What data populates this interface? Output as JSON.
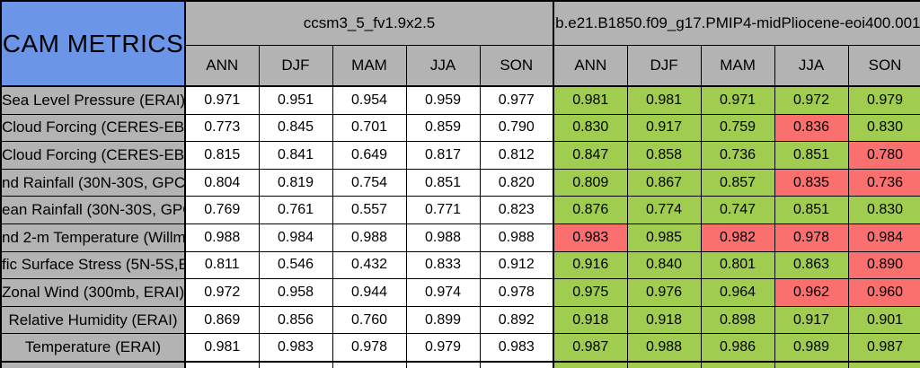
{
  "colors": {
    "header-blue": "#6b96e8",
    "header-gray": "#b3b3b3",
    "cell-green": "#a0cc50",
    "cell-red": "#fa706e",
    "cell-white": "#ffffff"
  },
  "chart_data": {
    "type": "table",
    "title": "CAM METRICS",
    "column_groups": [
      {
        "name": "ccsm3_5_fv1.9x2.5",
        "columns": [
          "ANN",
          "DJF",
          "MAM",
          "JJA",
          "SON"
        ]
      },
      {
        "name": "b.e21.B1850.f09_g17.PMIP4-midPliocene-eoi400.001",
        "columns": [
          "ANN",
          "DJF",
          "MAM",
          "JJA",
          "SON"
        ]
      }
    ],
    "rows": [
      {
        "label": "Sea Level Pressure (ERAI)",
        "group1_values": [
          "0.971",
          "0.951",
          "0.954",
          "0.959",
          "0.977"
        ],
        "group2_values": [
          "0.981",
          "0.981",
          "0.971",
          "0.972",
          "0.979"
        ],
        "group2_colors": [
          "green",
          "green",
          "green",
          "green",
          "green"
        ]
      },
      {
        "label": "Cloud Forcing (CERES-EB",
        "group1_values": [
          "0.773",
          "0.845",
          "0.701",
          "0.859",
          "0.790"
        ],
        "group2_values": [
          "0.830",
          "0.917",
          "0.759",
          "0.836",
          "0.830"
        ],
        "group2_colors": [
          "green",
          "green",
          "green",
          "red",
          "green"
        ]
      },
      {
        "label": "Cloud Forcing (CERES-EB",
        "group1_values": [
          "0.815",
          "0.841",
          "0.649",
          "0.817",
          "0.812"
        ],
        "group2_values": [
          "0.847",
          "0.858",
          "0.736",
          "0.851",
          "0.780"
        ],
        "group2_colors": [
          "green",
          "green",
          "green",
          "green",
          "red"
        ]
      },
      {
        "label": "nd Rainfall (30N-30S, GPC",
        "group1_values": [
          "0.804",
          "0.819",
          "0.754",
          "0.851",
          "0.820"
        ],
        "group2_values": [
          "0.809",
          "0.867",
          "0.857",
          "0.835",
          "0.736"
        ],
        "group2_colors": [
          "green",
          "green",
          "green",
          "red",
          "red"
        ]
      },
      {
        "label": "ean Rainfall (30N-30S, GPC",
        "group1_values": [
          "0.769",
          "0.761",
          "0.557",
          "0.771",
          "0.823"
        ],
        "group2_values": [
          "0.876",
          "0.774",
          "0.747",
          "0.851",
          "0.830"
        ],
        "group2_colors": [
          "green",
          "green",
          "green",
          "green",
          "green"
        ]
      },
      {
        "label": "nd 2-m Temperature (Willmo",
        "group1_values": [
          "0.988",
          "0.984",
          "0.988",
          "0.988",
          "0.988"
        ],
        "group2_values": [
          "0.983",
          "0.985",
          "0.982",
          "0.978",
          "0.984"
        ],
        "group2_colors": [
          "red",
          "green",
          "red",
          "red",
          "red"
        ]
      },
      {
        "label": "fic Surface Stress (5N-5S,E",
        "group1_values": [
          "0.811",
          "0.546",
          "0.432",
          "0.833",
          "0.912"
        ],
        "group2_values": [
          "0.916",
          "0.840",
          "0.801",
          "0.863",
          "0.890"
        ],
        "group2_colors": [
          "green",
          "green",
          "green",
          "green",
          "red"
        ]
      },
      {
        "label": "Zonal Wind (300mb, ERAI)",
        "group1_values": [
          "0.972",
          "0.958",
          "0.944",
          "0.974",
          "0.978"
        ],
        "group2_values": [
          "0.975",
          "0.976",
          "0.964",
          "0.962",
          "0.960"
        ],
        "group2_colors": [
          "green",
          "green",
          "green",
          "red",
          "red"
        ]
      },
      {
        "label": "Relative Humidity (ERAI)",
        "group1_values": [
          "0.869",
          "0.856",
          "0.760",
          "0.899",
          "0.892"
        ],
        "group2_values": [
          "0.918",
          "0.918",
          "0.898",
          "0.917",
          "0.901"
        ],
        "group2_colors": [
          "green",
          "green",
          "green",
          "green",
          "green"
        ]
      },
      {
        "label": "Temperature (ERAI)",
        "group1_values": [
          "0.981",
          "0.983",
          "0.978",
          "0.979",
          "0.983"
        ],
        "group2_values": [
          "0.987",
          "0.988",
          "0.986",
          "0.989",
          "0.987"
        ],
        "group2_colors": [
          "green",
          "green",
          "green",
          "green",
          "green"
        ]
      }
    ],
    "partial_bottom_row": {
      "group1_color": "white",
      "group2_color": "green"
    }
  }
}
